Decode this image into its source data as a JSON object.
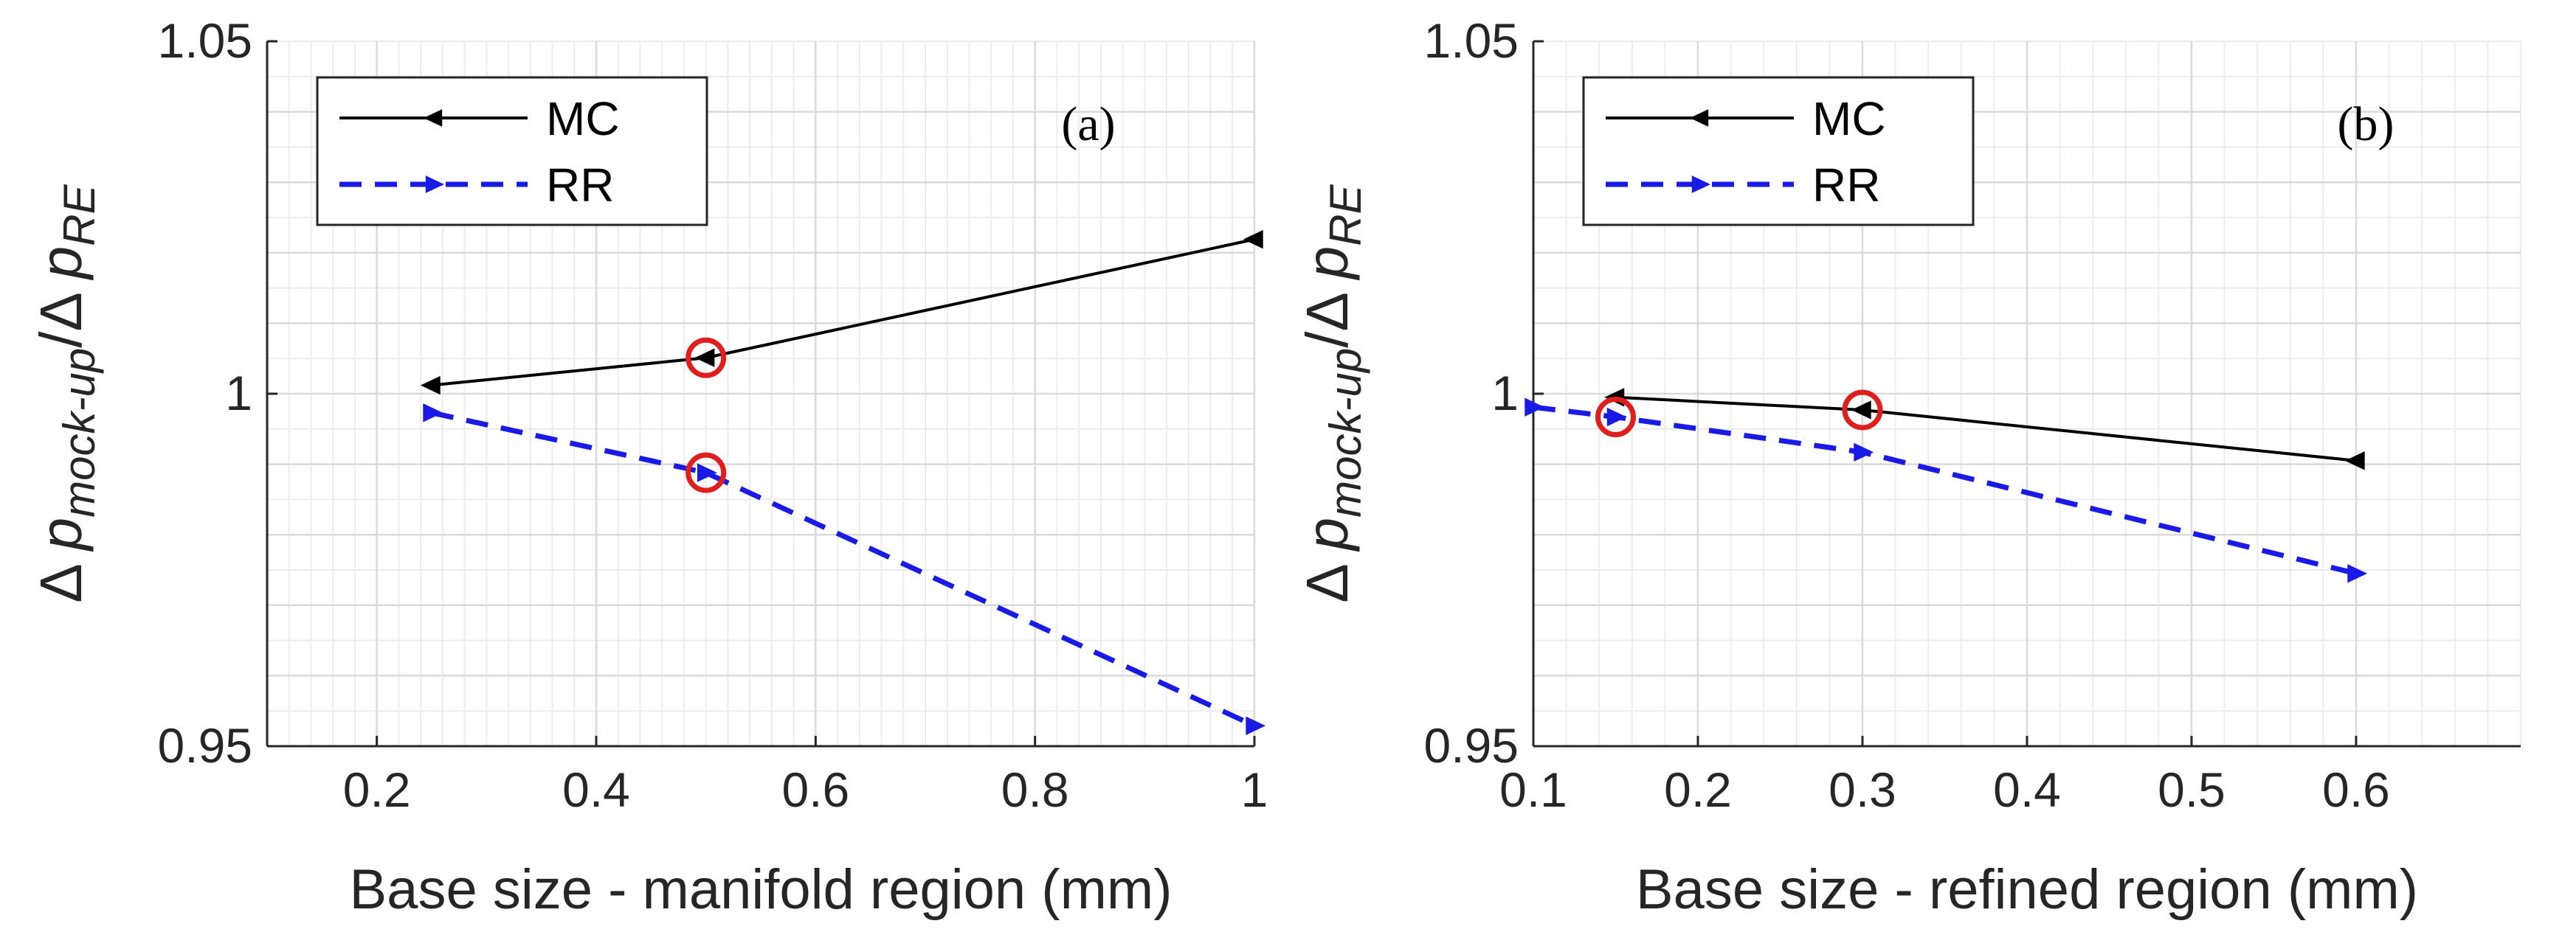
{
  "colors": {
    "mc": "#000000",
    "rr": "#1a1ae6",
    "highlight": "#e01e1e",
    "grid_major": "#dadada",
    "grid_minor": "#ececec",
    "axis": "#262626"
  },
  "chart_data": [
    {
      "type": "line",
      "panel_label": "(a)",
      "xlabel": "Base size - manifold region (mm)",
      "ylabel_parts": [
        "Δ ",
        "p",
        "mock-up",
        "/Δ ",
        "p",
        "RE"
      ],
      "xlim": [
        0.1,
        1.0
      ],
      "ylim": [
        0.95,
        1.05
      ],
      "xticks": [
        0.2,
        0.4,
        0.6,
        0.8,
        1
      ],
      "xtick_labels": [
        "0.2",
        "0.4",
        "0.6",
        "0.8",
        "1"
      ],
      "yticks": [
        0.95,
        1,
        1.05
      ],
      "ytick_labels": [
        "0.95",
        "1",
        "1.05"
      ],
      "grid": true,
      "minor_grid": true,
      "legend_position": "top-left",
      "series": [
        {
          "name": "MC",
          "x": [
            0.25,
            0.5,
            1.0
          ],
          "y": [
            1.0012,
            1.0051,
            1.0219
          ],
          "style": "solid",
          "marker": "triangle-left"
        },
        {
          "name": "RR",
          "x": [
            0.25,
            0.5,
            1.0
          ],
          "y": [
            0.9973,
            0.9888,
            0.9529
          ],
          "style": "dashed",
          "marker": "triangle-right"
        }
      ],
      "highlighted_points": [
        {
          "series": "MC",
          "x": 0.5,
          "y": 1.0051
        },
        {
          "series": "RR",
          "x": 0.5,
          "y": 0.9888
        }
      ]
    },
    {
      "type": "line",
      "panel_label": "(b)",
      "xlabel": "Base size - refined region (mm)",
      "ylabel_parts": [
        "Δ ",
        "p",
        "mock-up",
        "/Δ ",
        "p",
        "RE"
      ],
      "xlim": [
        0.1,
        0.7
      ],
      "ylim": [
        0.95,
        1.05
      ],
      "xticks": [
        0.1,
        0.2,
        0.3,
        0.4,
        0.5,
        0.6
      ],
      "xtick_labels": [
        "0.1",
        "0.2",
        "0.3",
        "0.4",
        "0.5",
        "0.6"
      ],
      "yticks": [
        0.95,
        1,
        1.05
      ],
      "ytick_labels": [
        "0.95",
        "1",
        "1.05"
      ],
      "grid": true,
      "minor_grid": true,
      "legend_position": "top-left",
      "series": [
        {
          "name": "MC",
          "x": [
            0.15,
            0.3,
            0.6
          ],
          "y": [
            0.9995,
            0.9977,
            0.9905
          ],
          "style": "solid",
          "marker": "triangle-left"
        },
        {
          "name": "RR",
          "x": [
            0.1,
            0.15,
            0.3,
            0.6
          ],
          "y": [
            0.9981,
            0.9967,
            0.9917,
            0.9745
          ],
          "style": "dashed",
          "marker": "triangle-right"
        }
      ],
      "highlighted_points": [
        {
          "series": "MC",
          "x": 0.3,
          "y": 0.9977
        },
        {
          "series": "RR",
          "x": 0.15,
          "y": 0.9967
        }
      ]
    }
  ]
}
